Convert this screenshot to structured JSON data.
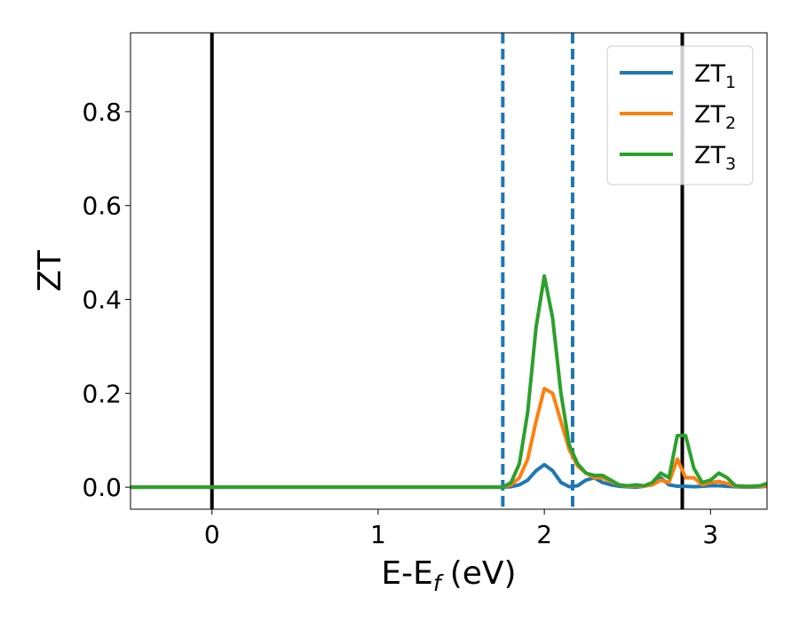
{
  "chart_data": {
    "type": "line",
    "xlabel": {
      "text": "E-E",
      "sub": "f",
      "unit": "(eV)"
    },
    "ylabel": "ZT",
    "x": [
      -0.49,
      0,
      1,
      1.5,
      1.75,
      1.8,
      1.85,
      1.9,
      1.95,
      2.0,
      2.05,
      2.1,
      2.15,
      2.2,
      2.25,
      2.3,
      2.35,
      2.4,
      2.45,
      2.5,
      2.55,
      2.6,
      2.65,
      2.7,
      2.75,
      2.8,
      2.85,
      2.9,
      2.95,
      3.0,
      3.05,
      3.1,
      3.15,
      3.2,
      3.25,
      3.3,
      3.34
    ],
    "series": [
      {
        "name": "ZT",
        "sub": "1",
        "color": "#1f77b4",
        "values": [
          0,
          0,
          0,
          0,
          0,
          0.001,
          0.005,
          0.015,
          0.035,
          0.048,
          0.035,
          0.01,
          0.001,
          0.003,
          0.015,
          0.02,
          0.01,
          0.005,
          0.002,
          0.001,
          0,
          0.002,
          0.008,
          0.02,
          0.005,
          0.002,
          0.002,
          0.001,
          0.002,
          0.003,
          0.003,
          0.002,
          0.001,
          0,
          0,
          0.001,
          0.002
        ]
      },
      {
        "name": "ZT",
        "sub": "2",
        "color": "#ff7f0e",
        "values": [
          0,
          0,
          0,
          0,
          0,
          0.005,
          0.02,
          0.06,
          0.14,
          0.21,
          0.2,
          0.14,
          0.08,
          0.045,
          0.03,
          0.02,
          0.02,
          0.012,
          0.005,
          0.002,
          0.003,
          0.002,
          0.005,
          0.015,
          0.01,
          0.06,
          0.02,
          0.02,
          0.005,
          0.01,
          0.012,
          0.008,
          0.002,
          0.001,
          0.001,
          0.002,
          0.003
        ]
      },
      {
        "name": "ZT",
        "sub": "3",
        "color": "#2ca02c",
        "values": [
          0,
          0,
          0,
          0,
          0,
          0.01,
          0.05,
          0.16,
          0.34,
          0.45,
          0.36,
          0.2,
          0.09,
          0.05,
          0.03,
          0.025,
          0.025,
          0.015,
          0.005,
          0.003,
          0.005,
          0.003,
          0.01,
          0.03,
          0.02,
          0.11,
          0.11,
          0.04,
          0.01,
          0.015,
          0.03,
          0.02,
          0.003,
          0.002,
          0.002,
          0.003,
          0.008
        ]
      }
    ],
    "vlines": [
      {
        "x": 0,
        "color": "#000000",
        "style": "solid"
      },
      {
        "x": 2.83,
        "color": "#000000",
        "style": "solid"
      },
      {
        "x": 1.75,
        "color": "#1f77b4",
        "style": "dashed"
      },
      {
        "x": 2.17,
        "color": "#1f77b4",
        "style": "dashed"
      }
    ],
    "xlim": [
      -0.49,
      3.34
    ],
    "ylim": [
      -0.047,
      0.968
    ],
    "xticks": [
      0,
      1,
      2,
      3
    ],
    "yticks": [
      {
        "value": 0,
        "label": "0.0"
      },
      0.2,
      0.4,
      0.6,
      0.8
    ],
    "legend": "upper right"
  }
}
